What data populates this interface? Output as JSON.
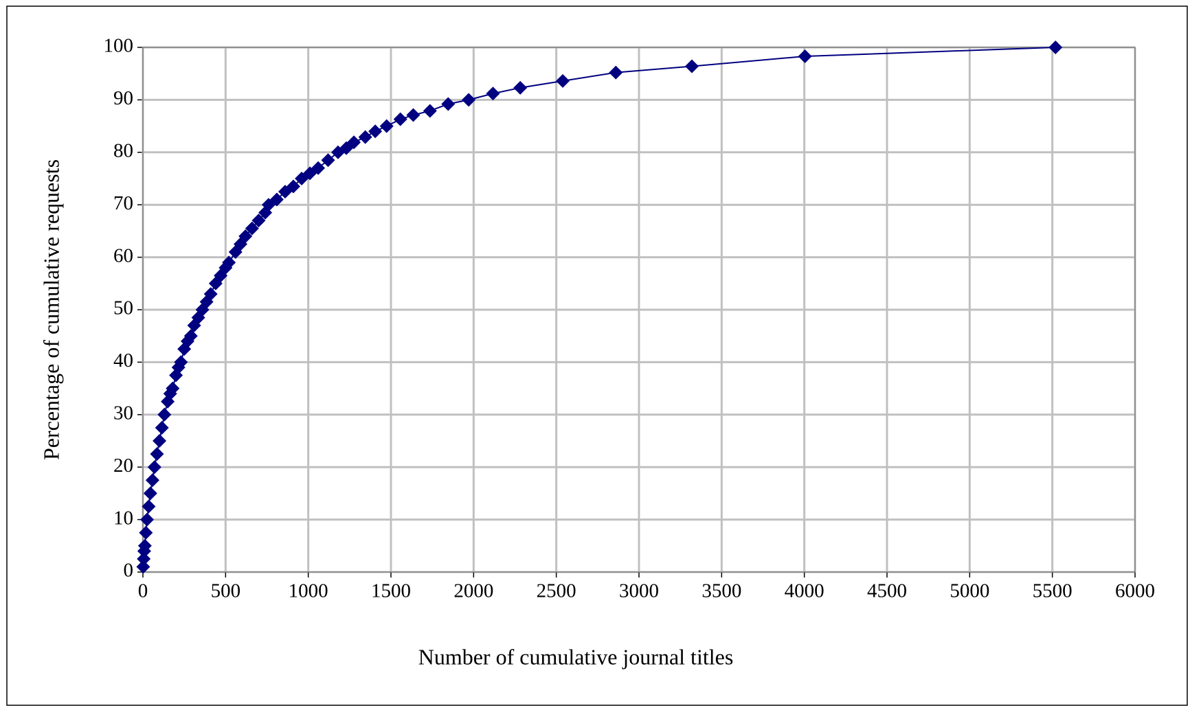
{
  "chart_data": {
    "type": "line",
    "x_label": "Number of cumulative journal titles",
    "y_label": "Percentage of cumulative requests",
    "x": [
      2,
      5,
      8,
      12,
      18,
      25,
      35,
      45,
      58,
      70,
      85,
      100,
      115,
      130,
      150,
      165,
      180,
      200,
      215,
      230,
      250,
      270,
      290,
      310,
      335,
      360,
      385,
      410,
      440,
      470,
      500,
      520,
      560,
      590,
      620,
      660,
      700,
      740,
      760,
      810,
      860,
      910,
      960,
      1010,
      1060,
      1120,
      1180,
      1230,
      1276,
      1345,
      1405,
      1474,
      1557,
      1635,
      1736,
      1846,
      1970,
      2117,
      2282,
      2539,
      2860,
      3320,
      4004,
      5519
    ],
    "values": [
      1,
      2.5,
      4,
      5,
      7.5,
      10,
      12.5,
      15,
      17.5,
      20,
      22.5,
      25,
      27.5,
      30,
      32.5,
      34,
      35,
      37.5,
      39,
      40,
      42.5,
      44,
      45,
      47,
      48.5,
      50,
      51.5,
      53,
      55,
      56.5,
      58,
      59,
      61,
      62.5,
      64,
      65.5,
      67,
      68.5,
      70,
      71,
      72.5,
      73.5,
      75,
      76,
      77,
      78.5,
      80,
      80.8,
      81.9,
      82.9,
      84.0,
      85.0,
      86.3,
      87.1,
      87.9,
      89.2,
      90.0,
      91.2,
      92.3,
      93.6,
      95.2,
      96.4,
      98.3,
      100
    ],
    "color": "#000080",
    "xlim": [
      0,
      6000
    ],
    "xticks": [
      0,
      500,
      1000,
      1500,
      2000,
      2500,
      3000,
      3500,
      4000,
      4500,
      5000,
      5500,
      6000
    ],
    "ylim": [
      0,
      100
    ],
    "yticks": [
      0,
      10,
      20,
      30,
      40,
      50,
      60,
      70,
      80,
      90,
      100
    ],
    "grid": true
  }
}
